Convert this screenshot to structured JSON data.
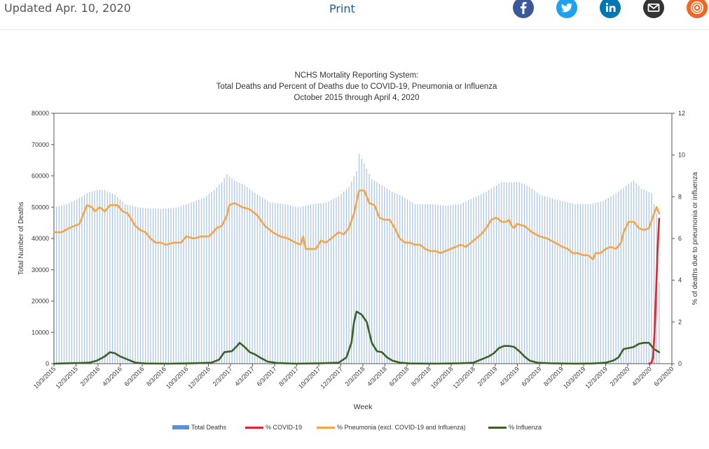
{
  "header": {
    "updated": "Updated Apr. 10, 2020",
    "print_label": "Print",
    "share_icons": [
      {
        "name": "facebook-icon",
        "color": "#3b5998"
      },
      {
        "name": "twitter-icon",
        "color": "#1da1f2"
      },
      {
        "name": "linkedin-icon",
        "color": "#0077b5"
      },
      {
        "name": "email-icon",
        "color": "#333333"
      },
      {
        "name": "syndicate-icon",
        "color": "#f26522"
      }
    ]
  },
  "chart_data": {
    "type": "bar",
    "title_lines": [
      "NCHS Mortality Reporting System:",
      "Total Deaths and Percent of Deaths due to  COVID-19, Pneumonia or Influenza",
      "October 2015 through April 4, 2020"
    ],
    "xlabel": "Week",
    "ylabel": "Total Number of Deaths",
    "y2label": "% of deaths due to pneumonia or influenza",
    "ylim": [
      0,
      80000
    ],
    "y_ticks": [
      "0",
      "10000",
      "20000",
      "30000",
      "40000",
      "50000",
      "60000",
      "70000",
      "80000"
    ],
    "y2lim": [
      0,
      12
    ],
    "y2_ticks": [
      "0",
      "2",
      "4",
      "6",
      "8",
      "10",
      "12"
    ],
    "x_ticks": [
      "10/3/2015",
      "12/3/2015",
      "2/3/2016",
      "4/3/2016",
      "6/3/2016",
      "8/3/2016",
      "10/3/2016",
      "12/3/2016",
      "2/3/2017",
      "4/3/2017",
      "6/3/2017",
      "8/3/2017",
      "10/3/2017",
      "12/3/2017",
      "2/3/2018",
      "4/3/2018",
      "6/3/2018",
      "8/3/2018",
      "10/3/2018",
      "12/3/2018",
      "2/3/2019",
      "4/3/2019",
      "6/3/2019",
      "8/3/2019",
      "10/3/2019",
      "12/3/2019",
      "2/3/2020",
      "4/3/2020",
      "6/3/2020"
    ],
    "x_domain_weeks": [
      0,
      243
    ],
    "grid": false,
    "legend_position": "bottom",
    "series": [
      {
        "name": "Total Deaths",
        "kind": "bar",
        "color": "#5b8fd6",
        "points": [
          [
            0,
            50000
          ],
          [
            5,
            51000
          ],
          [
            9,
            52500
          ],
          [
            13,
            54500
          ],
          [
            17,
            55500
          ],
          [
            20,
            55500
          ],
          [
            24,
            54000
          ],
          [
            28,
            51000
          ],
          [
            33,
            50000
          ],
          [
            38,
            49500
          ],
          [
            44,
            49500
          ],
          [
            49,
            50000
          ],
          [
            54,
            51500
          ],
          [
            59,
            53000
          ],
          [
            63,
            55500
          ],
          [
            66,
            58000
          ],
          [
            68,
            60500
          ],
          [
            71,
            58500
          ],
          [
            75,
            57000
          ],
          [
            80,
            54000
          ],
          [
            85,
            51500
          ],
          [
            91,
            51000
          ],
          [
            96,
            50000
          ],
          [
            102,
            51000
          ],
          [
            107,
            51500
          ],
          [
            112,
            53500
          ],
          [
            116,
            56500
          ],
          [
            119,
            61500
          ],
          [
            120,
            67000
          ],
          [
            122,
            64000
          ],
          [
            125,
            59000
          ],
          [
            129,
            57000
          ],
          [
            133,
            55000
          ],
          [
            137,
            53500
          ],
          [
            142,
            51000
          ],
          [
            148,
            51000
          ],
          [
            154,
            50500
          ],
          [
            160,
            51000
          ],
          [
            165,
            53000
          ],
          [
            169,
            54500
          ],
          [
            173,
            56500
          ],
          [
            176,
            58000
          ],
          [
            179,
            58000
          ],
          [
            183,
            58000
          ],
          [
            187,
            56500
          ],
          [
            191,
            54000
          ],
          [
            195,
            53000
          ],
          [
            200,
            52000
          ],
          [
            205,
            51000
          ],
          [
            211,
            51000
          ],
          [
            216,
            52000
          ],
          [
            222,
            55000
          ],
          [
            226,
            57500
          ],
          [
            228,
            58500
          ],
          [
            231,
            56000
          ],
          [
            235,
            54500
          ],
          [
            236,
            51000
          ],
          [
            237,
            48000
          ],
          [
            238,
            26000
          ]
        ]
      },
      {
        "name": "% COVID-19",
        "kind": "line",
        "color": "#e8202a",
        "points": [
          [
            234,
            0
          ],
          [
            235,
            0.05
          ],
          [
            235.6,
            0.3
          ],
          [
            236.2,
            1.5
          ],
          [
            236.8,
            3.5
          ],
          [
            237.4,
            5.5
          ],
          [
            238,
            6.95
          ]
        ]
      },
      {
        "name": "% Pneumonia (excl. COVID-19 and Influenza)",
        "kind": "line",
        "color": "#f5a447",
        "points": [
          [
            0,
            6.3
          ],
          [
            3,
            6.3
          ],
          [
            6,
            6.5
          ],
          [
            10,
            6.7
          ],
          [
            13,
            7.6
          ],
          [
            15,
            7.5
          ],
          [
            16,
            7.3
          ],
          [
            18,
            7.5
          ],
          [
            20,
            7.3
          ],
          [
            22,
            7.6
          ],
          [
            25,
            7.6
          ],
          [
            27,
            7.3
          ],
          [
            29,
            7.2
          ],
          [
            32,
            6.6
          ],
          [
            34,
            6.4
          ],
          [
            36,
            6.3
          ],
          [
            38,
            6.0
          ],
          [
            40,
            5.8
          ],
          [
            42,
            5.8
          ],
          [
            44,
            5.7
          ],
          [
            47,
            5.8
          ],
          [
            50,
            5.8
          ],
          [
            52,
            6.1
          ],
          [
            55,
            6.0
          ],
          [
            58,
            6.1
          ],
          [
            61,
            6.1
          ],
          [
            64,
            6.5
          ],
          [
            66,
            6.6
          ],
          [
            68,
            7.1
          ],
          [
            69,
            7.6
          ],
          [
            71,
            7.7
          ],
          [
            74,
            7.5
          ],
          [
            77,
            7.4
          ],
          [
            80,
            7.1
          ],
          [
            83,
            6.6
          ],
          [
            86,
            6.3
          ],
          [
            89,
            6.1
          ],
          [
            92,
            6.0
          ],
          [
            95,
            5.8
          ],
          [
            97,
            5.7
          ],
          [
            98,
            6.1
          ],
          [
            99,
            5.5
          ],
          [
            101,
            5.5
          ],
          [
            103,
            5.5
          ],
          [
            105,
            5.9
          ],
          [
            107,
            5.8
          ],
          [
            109,
            6.0
          ],
          [
            112,
            6.3
          ],
          [
            114,
            6.2
          ],
          [
            116,
            6.5
          ],
          [
            118,
            7.2
          ],
          [
            120,
            8.3
          ],
          [
            122,
            8.3
          ],
          [
            124,
            7.7
          ],
          [
            126,
            7.6
          ],
          [
            128,
            7.0
          ],
          [
            130,
            6.9
          ],
          [
            132,
            6.9
          ],
          [
            134,
            6.5
          ],
          [
            136,
            6.0
          ],
          [
            138,
            5.8
          ],
          [
            140,
            5.8
          ],
          [
            142,
            5.7
          ],
          [
            144,
            5.7
          ],
          [
            146,
            5.5
          ],
          [
            148,
            5.4
          ],
          [
            150,
            5.4
          ],
          [
            152,
            5.3
          ],
          [
            154,
            5.4
          ],
          [
            156,
            5.5
          ],
          [
            158,
            5.6
          ],
          [
            160,
            5.7
          ],
          [
            162,
            5.6
          ],
          [
            164,
            5.8
          ],
          [
            166,
            6.0
          ],
          [
            168,
            6.2
          ],
          [
            170,
            6.5
          ],
          [
            172,
            6.9
          ],
          [
            174,
            7.0
          ],
          [
            176,
            6.8
          ],
          [
            178,
            6.8
          ],
          [
            179,
            6.9
          ],
          [
            180,
            6.6
          ],
          [
            181,
            6.5
          ],
          [
            182,
            6.7
          ],
          [
            185,
            6.6
          ],
          [
            188,
            6.3
          ],
          [
            191,
            6.1
          ],
          [
            194,
            6.0
          ],
          [
            197,
            5.8
          ],
          [
            200,
            5.6
          ],
          [
            202,
            5.5
          ],
          [
            204,
            5.3
          ],
          [
            206,
            5.3
          ],
          [
            208,
            5.2
          ],
          [
            210,
            5.2
          ],
          [
            212,
            5.0
          ],
          [
            213,
            5.3
          ],
          [
            215,
            5.3
          ],
          [
            217,
            5.5
          ],
          [
            219,
            5.6
          ],
          [
            221,
            5.5
          ],
          [
            223,
            5.8
          ],
          [
            224,
            6.3
          ],
          [
            226,
            6.8
          ],
          [
            228,
            6.8
          ],
          [
            230,
            6.5
          ],
          [
            232,
            6.4
          ],
          [
            234,
            6.5
          ],
          [
            236,
            7.2
          ],
          [
            237,
            7.5
          ],
          [
            238,
            7.2
          ]
        ]
      },
      {
        "name": "% Influenza",
        "kind": "line",
        "color": "#3a6124",
        "points": [
          [
            0,
            0
          ],
          [
            5,
            0.02
          ],
          [
            10,
            0.03
          ],
          [
            14,
            0.05
          ],
          [
            17,
            0.15
          ],
          [
            20,
            0.35
          ],
          [
            22,
            0.55
          ],
          [
            24,
            0.5
          ],
          [
            26,
            0.35
          ],
          [
            29,
            0.2
          ],
          [
            32,
            0.05
          ],
          [
            36,
            0.01
          ],
          [
            45,
            0
          ],
          [
            55,
            0.02
          ],
          [
            62,
            0.05
          ],
          [
            65,
            0.2
          ],
          [
            67,
            0.55
          ],
          [
            70,
            0.6
          ],
          [
            72,
            0.85
          ],
          [
            73,
            1.0
          ],
          [
            75,
            0.8
          ],
          [
            77,
            0.55
          ],
          [
            79,
            0.45
          ],
          [
            81,
            0.3
          ],
          [
            84,
            0.1
          ],
          [
            88,
            0.03
          ],
          [
            95,
            0
          ],
          [
            105,
            0.02
          ],
          [
            112,
            0.05
          ],
          [
            115,
            0.3
          ],
          [
            117,
            1.0
          ],
          [
            118,
            2.0
          ],
          [
            119,
            2.5
          ],
          [
            121,
            2.35
          ],
          [
            123,
            2.0
          ],
          [
            124,
            1.5
          ],
          [
            125,
            1.0
          ],
          [
            127,
            0.6
          ],
          [
            129,
            0.55
          ],
          [
            131,
            0.3
          ],
          [
            133,
            0.15
          ],
          [
            136,
            0.05
          ],
          [
            140,
            0.01
          ],
          [
            150,
            0
          ],
          [
            160,
            0.02
          ],
          [
            165,
            0.05
          ],
          [
            168,
            0.2
          ],
          [
            171,
            0.35
          ],
          [
            173,
            0.5
          ],
          [
            175,
            0.75
          ],
          [
            177,
            0.85
          ],
          [
            179,
            0.85
          ],
          [
            181,
            0.8
          ],
          [
            183,
            0.6
          ],
          [
            185,
            0.35
          ],
          [
            187,
            0.15
          ],
          [
            190,
            0.05
          ],
          [
            195,
            0.02
          ],
          [
            205,
            0
          ],
          [
            212,
            0.01
          ],
          [
            217,
            0.05
          ],
          [
            220,
            0.15
          ],
          [
            222,
            0.3
          ],
          [
            224,
            0.7
          ],
          [
            226,
            0.75
          ],
          [
            228,
            0.8
          ],
          [
            230,
            0.95
          ],
          [
            232,
            1.0
          ],
          [
            234,
            1.0
          ],
          [
            236,
            0.7
          ],
          [
            238,
            0.55
          ]
        ]
      }
    ]
  }
}
